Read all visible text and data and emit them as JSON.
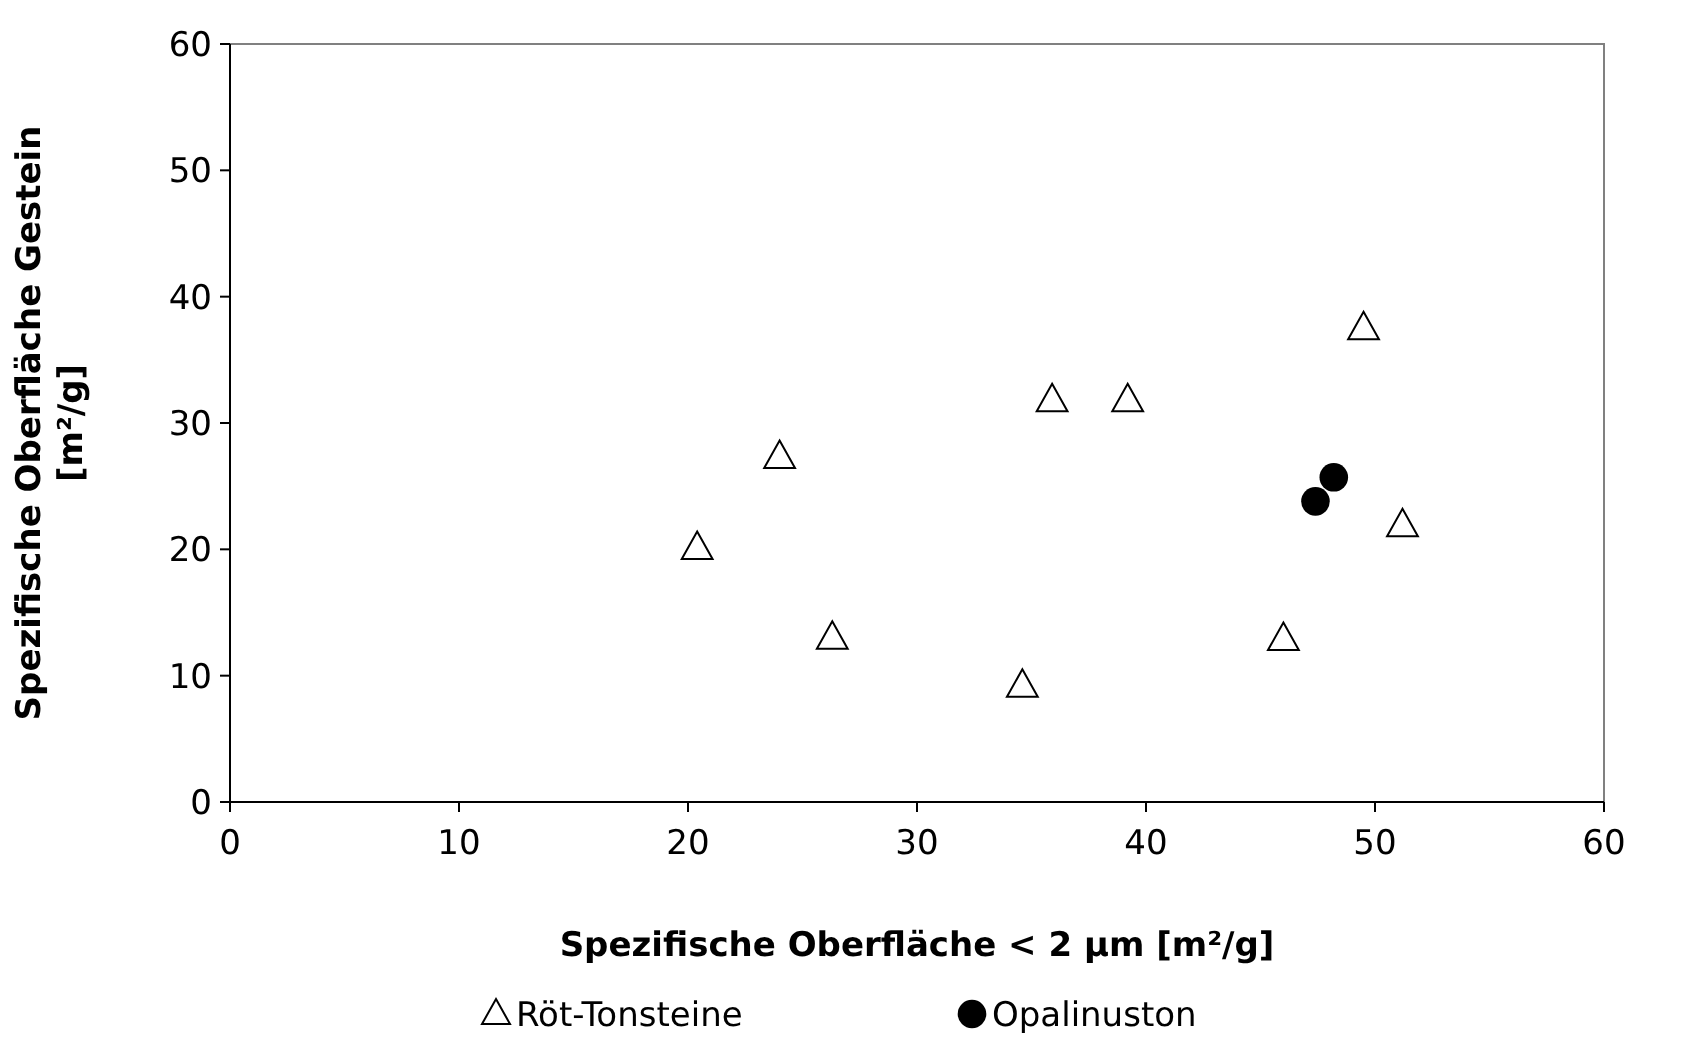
{
  "chart_data": {
    "type": "scatter",
    "xlabel": "Spezifische Oberfläche < 2 µm [m²/g]",
    "ylabel": "Spezifische Oberfläche Gestein [m²/g]",
    "xlim": [
      0,
      60
    ],
    "ylim": [
      0,
      60
    ],
    "xticks": [
      0,
      10,
      20,
      30,
      40,
      50,
      60
    ],
    "yticks": [
      0,
      10,
      20,
      30,
      40,
      50,
      60
    ],
    "grid": false,
    "legend": "bottom",
    "series": [
      {
        "name": "Röt-Tonsteine",
        "color": "#000000",
        "marker": "triangle",
        "x": [
          20.4,
          24.0,
          26.3,
          34.6,
          35.9,
          39.2,
          46.0,
          49.5,
          51.2
        ],
        "values": [
          20.1,
          27.3,
          13.0,
          9.2,
          31.8,
          31.8,
          12.9,
          37.5,
          21.9
        ]
      },
      {
        "name": "Opalinuston",
        "color": "#000000",
        "marker": "circle",
        "x": [
          47.4,
          48.2
        ],
        "values": [
          23.8,
          25.7
        ]
      }
    ]
  }
}
